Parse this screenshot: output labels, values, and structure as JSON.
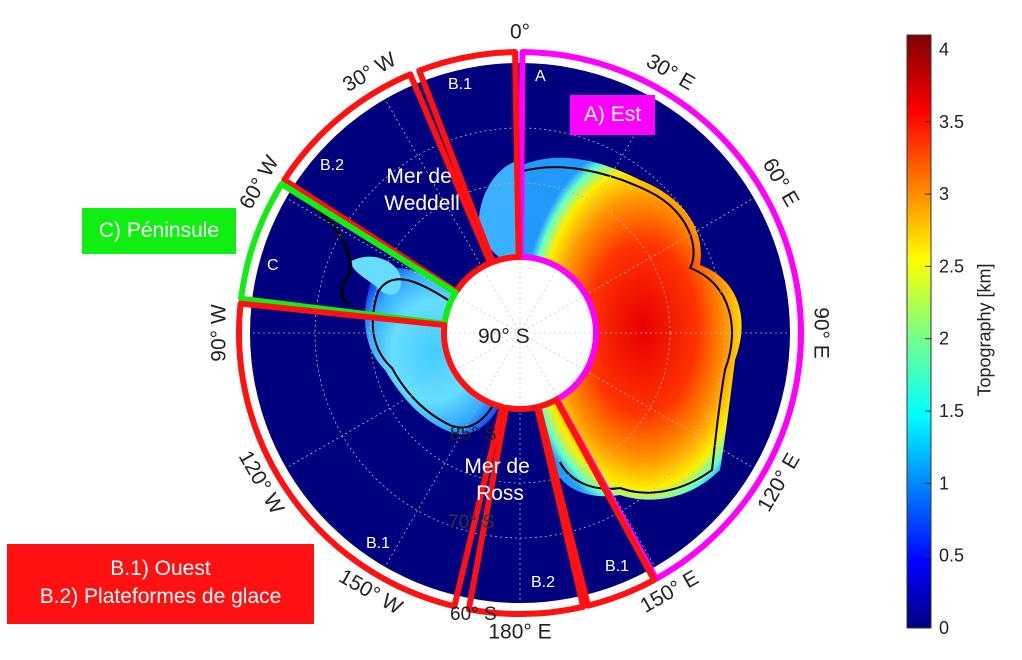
{
  "map": {
    "center_label": "90° S",
    "latitude_labels": [
      {
        "text": "85° S"
      },
      {
        "text": "70° S"
      },
      {
        "text": "60° S"
      }
    ],
    "longitude_labels": [
      {
        "lon": 0,
        "text": "0°"
      },
      {
        "lon": 30,
        "text": "30° E"
      },
      {
        "lon": 60,
        "text": "60° E"
      },
      {
        "lon": 90,
        "text": "90° E"
      },
      {
        "lon": 120,
        "text": "120° E"
      },
      {
        "lon": 150,
        "text": "150° E"
      },
      {
        "lon": 180,
        "text": "180° E"
      },
      {
        "lon": -150,
        "text": "150° W"
      },
      {
        "lon": -120,
        "text": "120° W"
      },
      {
        "lon": -90,
        "text": "90° W"
      },
      {
        "lon": -60,
        "text": "60° W"
      },
      {
        "lon": -30,
        "text": "30° W"
      }
    ],
    "seas": {
      "weddell": [
        "Mer de",
        "Weddell"
      ],
      "ross": [
        "Mer de",
        "Ross"
      ]
    },
    "sector_tags": {
      "a": "A",
      "b1_weddell": "B.1",
      "b2_weddell": "B.2",
      "c": "C",
      "b1_ross_west": "B.1",
      "b2_ross": "B.2",
      "b1_ross_east": "B.1"
    },
    "regions": [
      {
        "key": "A",
        "name": "A) Est",
        "lon_start": 0,
        "lon_end": 150,
        "color": "#ff00ff"
      },
      {
        "key": "B",
        "name": "B.1) Ouest",
        "color": "#ff1111"
      },
      {
        "key": "C",
        "name": "C) Péninsule",
        "lon_start": -83,
        "lon_end": -57,
        "color": "#11ee11"
      }
    ],
    "legend": {
      "east": "A) Est",
      "peninsula": "C) Péninsule",
      "west": "B.1) Ouest",
      "ice_shelves": "B.2) Plateformes de glace"
    }
  },
  "colorbar": {
    "title": "Topography [km]",
    "ticks": [
      "0",
      "0.5",
      "1",
      "1.5",
      "2",
      "2.5",
      "3",
      "3.5",
      "4"
    ],
    "range_km": [
      0,
      4.1
    ],
    "colormap": "jet"
  }
}
